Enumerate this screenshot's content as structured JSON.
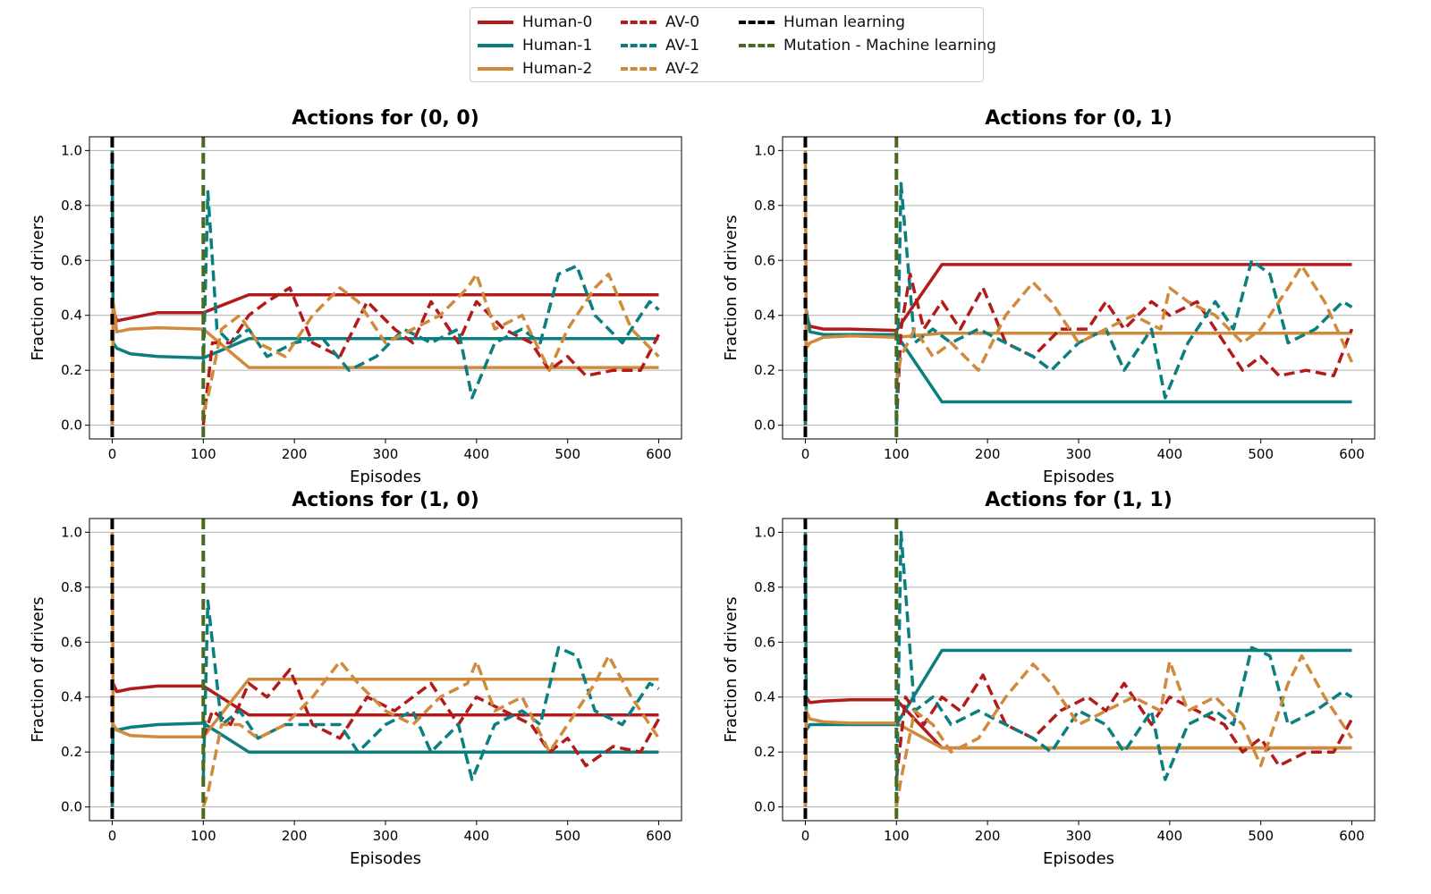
{
  "legend": [
    {
      "name": "Human-0",
      "color": "#b31b1b",
      "style": "solid"
    },
    {
      "name": "Human-1",
      "color": "#0b7f7f",
      "style": "solid"
    },
    {
      "name": "Human-2",
      "color": "#d08a3c",
      "style": "solid"
    },
    {
      "name": "AV-0",
      "color": "#b31b1b",
      "style": "dashed"
    },
    {
      "name": "AV-1",
      "color": "#0b7f7f",
      "style": "dashed"
    },
    {
      "name": "AV-2",
      "color": "#d08a3c",
      "style": "dashed"
    },
    {
      "name": "Human learning",
      "color": "#000000",
      "style": "dashed"
    },
    {
      "name": "Mutation - Machine learning",
      "color": "#4a6b1e",
      "style": "dashed"
    }
  ],
  "colors": {
    "Human-0": "#b31b1b",
    "Human-1": "#0b7f7f",
    "Human-2": "#d08a3c",
    "human_learning": "#000000",
    "mutation": "#4a6b1e",
    "grid": "#b0b0b0"
  },
  "chart_data": [
    {
      "type": "line",
      "title": "Actions for (0, 0)",
      "xlabel": "Episodes",
      "ylabel": "Fraction of drivers",
      "xlim": [
        -25,
        625
      ],
      "ylim": [
        -0.05,
        1.05
      ],
      "xticks": [
        0,
        100,
        200,
        300,
        400,
        500,
        600
      ],
      "yticks": [
        0.0,
        0.2,
        0.4,
        0.6,
        0.8,
        1.0
      ],
      "grid": "y",
      "vlines": [
        {
          "x": 0,
          "series": "Human learning"
        },
        {
          "x": 100,
          "series": "Mutation - Machine learning"
        }
      ],
      "series": [
        {
          "name": "Human-0",
          "x": [
            0,
            1,
            5,
            20,
            50,
            100,
            150,
            600
          ],
          "values": [
            0.0,
            0.42,
            0.38,
            0.39,
            0.41,
            0.41,
            0.475,
            0.475
          ]
        },
        {
          "name": "Human-1",
          "x": [
            0,
            1,
            5,
            20,
            50,
            100,
            150,
            600
          ],
          "values": [
            1.0,
            0.3,
            0.28,
            0.26,
            0.25,
            0.245,
            0.315,
            0.315
          ]
        },
        {
          "name": "Human-2",
          "x": [
            0,
            1,
            5,
            20,
            50,
            100,
            150,
            600
          ],
          "values": [
            0.0,
            0.45,
            0.34,
            0.35,
            0.355,
            0.35,
            0.21,
            0.21
          ]
        },
        {
          "name": "AV-0",
          "x": [
            100,
            110,
            130,
            150,
            170,
            195,
            220,
            250,
            280,
            310,
            330,
            350,
            380,
            400,
            430,
            460,
            480,
            500,
            520,
            550,
            580,
            600
          ],
          "values": [
            0.0,
            0.3,
            0.3,
            0.4,
            0.45,
            0.5,
            0.3,
            0.25,
            0.45,
            0.35,
            0.3,
            0.45,
            0.3,
            0.45,
            0.35,
            0.3,
            0.2,
            0.25,
            0.18,
            0.2,
            0.2,
            0.33
          ]
        },
        {
          "name": "AV-1",
          "x": [
            100,
            105,
            115,
            130,
            150,
            170,
            200,
            230,
            260,
            290,
            320,
            350,
            380,
            395,
            420,
            450,
            470,
            490,
            510,
            530,
            560,
            590,
            600
          ],
          "values": [
            0.2,
            0.85,
            0.35,
            0.3,
            0.35,
            0.25,
            0.3,
            0.32,
            0.2,
            0.25,
            0.35,
            0.3,
            0.35,
            0.1,
            0.3,
            0.35,
            0.3,
            0.55,
            0.58,
            0.4,
            0.3,
            0.45,
            0.42
          ]
        },
        {
          "name": "AV-2",
          "x": [
            100,
            105,
            120,
            140,
            160,
            190,
            220,
            250,
            270,
            300,
            330,
            360,
            390,
            400,
            420,
            450,
            480,
            500,
            530,
            545,
            570,
            600
          ],
          "values": [
            0.05,
            0.1,
            0.35,
            0.4,
            0.3,
            0.25,
            0.4,
            0.5,
            0.45,
            0.3,
            0.35,
            0.4,
            0.5,
            0.55,
            0.35,
            0.4,
            0.2,
            0.35,
            0.5,
            0.55,
            0.35,
            0.25
          ]
        }
      ]
    },
    {
      "type": "line",
      "title": "Actions for (0, 1)",
      "xlabel": "Episodes",
      "ylabel": "Fraction of drivers",
      "xlim": [
        -25,
        625
      ],
      "ylim": [
        -0.05,
        1.05
      ],
      "xticks": [
        0,
        100,
        200,
        300,
        400,
        500,
        600
      ],
      "yticks": [
        0.0,
        0.2,
        0.4,
        0.6,
        0.8,
        1.0
      ],
      "grid": "y",
      "vlines": [
        {
          "x": 0,
          "series": "Human learning"
        },
        {
          "x": 100,
          "series": "Mutation - Machine learning"
        }
      ],
      "series": [
        {
          "name": "Human-0",
          "x": [
            0,
            1,
            5,
            20,
            50,
            100,
            150,
            600
          ],
          "values": [
            0.0,
            0.4,
            0.36,
            0.35,
            0.35,
            0.345,
            0.585,
            0.585
          ]
        },
        {
          "name": "Human-1",
          "x": [
            0,
            1,
            5,
            20,
            50,
            100,
            150,
            600
          ],
          "values": [
            0.0,
            0.42,
            0.34,
            0.33,
            0.33,
            0.33,
            0.085,
            0.085
          ]
        },
        {
          "name": "Human-2",
          "x": [
            0,
            1,
            5,
            20,
            50,
            100,
            150,
            600
          ],
          "values": [
            1.0,
            0.28,
            0.3,
            0.32,
            0.325,
            0.32,
            0.335,
            0.335
          ]
        },
        {
          "name": "AV-0",
          "x": [
            100,
            105,
            115,
            130,
            150,
            170,
            195,
            220,
            250,
            280,
            310,
            330,
            350,
            380,
            400,
            430,
            460,
            480,
            500,
            520,
            550,
            580,
            600
          ],
          "values": [
            0.0,
            0.35,
            0.55,
            0.35,
            0.45,
            0.35,
            0.5,
            0.3,
            0.25,
            0.35,
            0.35,
            0.45,
            0.35,
            0.45,
            0.4,
            0.45,
            0.3,
            0.2,
            0.25,
            0.18,
            0.2,
            0.18,
            0.35
          ]
        },
        {
          "name": "AV-1",
          "x": [
            100,
            105,
            120,
            140,
            160,
            190,
            220,
            250,
            270,
            300,
            330,
            350,
            380,
            395,
            420,
            450,
            470,
            490,
            510,
            530,
            560,
            590,
            600
          ],
          "values": [
            0.0,
            0.88,
            0.3,
            0.35,
            0.3,
            0.35,
            0.3,
            0.25,
            0.2,
            0.3,
            0.35,
            0.2,
            0.35,
            0.1,
            0.3,
            0.45,
            0.35,
            0.6,
            0.55,
            0.3,
            0.35,
            0.45,
            0.43
          ]
        },
        {
          "name": "AV-2",
          "x": [
            100,
            105,
            120,
            140,
            160,
            190,
            220,
            250,
            270,
            300,
            330,
            360,
            390,
            400,
            420,
            450,
            480,
            500,
            530,
            545,
            570,
            600
          ],
          "values": [
            0.15,
            0.25,
            0.35,
            0.25,
            0.3,
            0.2,
            0.4,
            0.52,
            0.45,
            0.3,
            0.35,
            0.4,
            0.35,
            0.5,
            0.45,
            0.4,
            0.3,
            0.35,
            0.5,
            0.58,
            0.45,
            0.23
          ]
        }
      ]
    },
    {
      "type": "line",
      "title": "Actions for (1, 0)",
      "xlabel": "Episodes",
      "ylabel": "Fraction of drivers",
      "xlim": [
        -25,
        625
      ],
      "ylim": [
        -0.05,
        1.05
      ],
      "xticks": [
        0,
        100,
        200,
        300,
        400,
        500,
        600
      ],
      "yticks": [
        0.0,
        0.2,
        0.4,
        0.6,
        0.8,
        1.0
      ],
      "grid": "y",
      "vlines": [
        {
          "x": 0,
          "series": "Human learning"
        },
        {
          "x": 100,
          "series": "Mutation - Machine learning"
        }
      ],
      "series": [
        {
          "name": "Human-0",
          "x": [
            0,
            1,
            5,
            20,
            50,
            100,
            150,
            600
          ],
          "values": [
            0.0,
            0.45,
            0.42,
            0.43,
            0.44,
            0.44,
            0.335,
            0.335
          ]
        },
        {
          "name": "Human-1",
          "x": [
            0,
            1,
            5,
            20,
            50,
            100,
            150,
            600
          ],
          "values": [
            0.0,
            0.3,
            0.28,
            0.29,
            0.3,
            0.305,
            0.2,
            0.2
          ]
        },
        {
          "name": "Human-2",
          "x": [
            0,
            1,
            5,
            20,
            50,
            100,
            150,
            600
          ],
          "values": [
            1.0,
            0.3,
            0.28,
            0.26,
            0.255,
            0.255,
            0.465,
            0.465
          ]
        },
        {
          "name": "AV-0",
          "x": [
            100,
            110,
            130,
            150,
            170,
            195,
            220,
            250,
            280,
            310,
            330,
            350,
            380,
            400,
            430,
            460,
            480,
            500,
            520,
            550,
            580,
            600
          ],
          "values": [
            0.25,
            0.35,
            0.3,
            0.45,
            0.4,
            0.5,
            0.3,
            0.25,
            0.4,
            0.35,
            0.4,
            0.45,
            0.3,
            0.4,
            0.35,
            0.3,
            0.2,
            0.25,
            0.15,
            0.22,
            0.2,
            0.32
          ]
        },
        {
          "name": "AV-1",
          "x": [
            100,
            105,
            120,
            140,
            160,
            190,
            220,
            250,
            270,
            300,
            330,
            350,
            380,
            395,
            420,
            450,
            470,
            490,
            510,
            530,
            560,
            590,
            600
          ],
          "values": [
            0.1,
            0.75,
            0.3,
            0.35,
            0.25,
            0.3,
            0.3,
            0.3,
            0.2,
            0.3,
            0.35,
            0.2,
            0.3,
            0.1,
            0.3,
            0.35,
            0.3,
            0.58,
            0.55,
            0.35,
            0.3,
            0.45,
            0.43
          ]
        },
        {
          "name": "AV-2",
          "x": [
            100,
            105,
            120,
            140,
            160,
            190,
            220,
            250,
            270,
            300,
            330,
            360,
            390,
            400,
            420,
            450,
            480,
            500,
            530,
            545,
            570,
            600
          ],
          "values": [
            0.0,
            0.05,
            0.3,
            0.3,
            0.25,
            0.3,
            0.4,
            0.53,
            0.45,
            0.35,
            0.3,
            0.4,
            0.45,
            0.53,
            0.35,
            0.4,
            0.2,
            0.3,
            0.45,
            0.55,
            0.4,
            0.25
          ]
        }
      ]
    },
    {
      "type": "line",
      "title": "Actions for (1, 1)",
      "xlabel": "Episodes",
      "ylabel": "Fraction of drivers",
      "xlim": [
        -25,
        625
      ],
      "ylim": [
        -0.05,
        1.05
      ],
      "xticks": [
        0,
        100,
        200,
        300,
        400,
        500,
        600
      ],
      "yticks": [
        0.0,
        0.2,
        0.4,
        0.6,
        0.8,
        1.0
      ],
      "grid": "y",
      "vlines": [
        {
          "x": 0,
          "series": "Human learning"
        },
        {
          "x": 100,
          "series": "Mutation - Machine learning"
        }
      ],
      "series": [
        {
          "name": "Human-0",
          "x": [
            0,
            1,
            5,
            20,
            50,
            100,
            150,
            600
          ],
          "values": [
            0.0,
            0.4,
            0.38,
            0.385,
            0.39,
            0.39,
            0.215,
            0.215
          ]
        },
        {
          "name": "Human-1",
          "x": [
            0,
            1,
            5,
            20,
            50,
            100,
            150,
            600
          ],
          "values": [
            1.0,
            0.28,
            0.3,
            0.3,
            0.3,
            0.3,
            0.57,
            0.57
          ]
        },
        {
          "name": "Human-2",
          "x": [
            0,
            1,
            5,
            20,
            50,
            100,
            150,
            600
          ],
          "values": [
            0.0,
            0.35,
            0.32,
            0.31,
            0.305,
            0.305,
            0.215,
            0.215
          ]
        },
        {
          "name": "AV-0",
          "x": [
            100,
            110,
            130,
            150,
            170,
            195,
            220,
            250,
            280,
            310,
            330,
            350,
            380,
            400,
            430,
            460,
            480,
            500,
            520,
            550,
            580,
            600
          ],
          "values": [
            0.1,
            0.4,
            0.3,
            0.4,
            0.35,
            0.48,
            0.3,
            0.25,
            0.35,
            0.4,
            0.35,
            0.45,
            0.3,
            0.4,
            0.35,
            0.3,
            0.2,
            0.25,
            0.15,
            0.2,
            0.2,
            0.32
          ]
        },
        {
          "name": "AV-1",
          "x": [
            100,
            105,
            120,
            140,
            160,
            190,
            220,
            250,
            270,
            300,
            330,
            350,
            380,
            395,
            420,
            450,
            470,
            490,
            510,
            530,
            560,
            590,
            600
          ],
          "values": [
            0.0,
            1.0,
            0.35,
            0.4,
            0.3,
            0.35,
            0.3,
            0.25,
            0.2,
            0.35,
            0.3,
            0.2,
            0.35,
            0.1,
            0.3,
            0.35,
            0.3,
            0.58,
            0.55,
            0.3,
            0.35,
            0.42,
            0.4
          ]
        },
        {
          "name": "AV-2",
          "x": [
            100,
            105,
            120,
            140,
            160,
            190,
            220,
            250,
            270,
            300,
            330,
            360,
            390,
            400,
            420,
            450,
            480,
            500,
            530,
            545,
            570,
            600
          ],
          "values": [
            0.0,
            0.1,
            0.35,
            0.3,
            0.2,
            0.25,
            0.4,
            0.52,
            0.45,
            0.3,
            0.35,
            0.4,
            0.35,
            0.53,
            0.35,
            0.4,
            0.3,
            0.15,
            0.45,
            0.55,
            0.4,
            0.25
          ]
        }
      ]
    }
  ]
}
